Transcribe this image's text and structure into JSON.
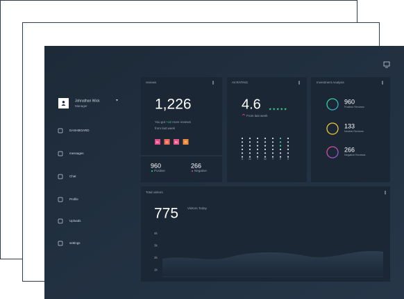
{
  "sidebar": {
    "user": {
      "name": "Johnathan Wick",
      "role": "Manager"
    },
    "menu": [
      "DASHBOARD",
      "messages",
      "Chat",
      "Profile",
      "Uploads",
      "settings"
    ]
  },
  "reviews": {
    "title": "reviews",
    "total": "1,226",
    "note_start": "You got",
    "note_delta": "+12",
    "note_end": "more reviews",
    "note_line2": "from last week",
    "badges": [
      "Be",
      "Dr",
      "Be",
      "Pi"
    ],
    "positive": {
      "value": "960",
      "label": "Positive"
    },
    "negative": {
      "value": "266",
      "label": "Negative"
    }
  },
  "rating": {
    "title": "AV.RATING",
    "value": "4.6",
    "note": "From last week",
    "days": [
      "S",
      "M",
      "T",
      "W",
      "T",
      "F",
      "S"
    ]
  },
  "investment": {
    "title": "Investment Analysis",
    "items": [
      {
        "value": "960",
        "label": "Positive Reviews"
      },
      {
        "value": "133",
        "label": "Neutral Reviews"
      },
      {
        "value": "266",
        "label": "Negative Reviews"
      }
    ]
  },
  "visitors": {
    "title": "Total visitors",
    "value": "775",
    "label": "Visitors Today",
    "axis": [
      "4k",
      "3k",
      "2k",
      "1k"
    ]
  }
}
